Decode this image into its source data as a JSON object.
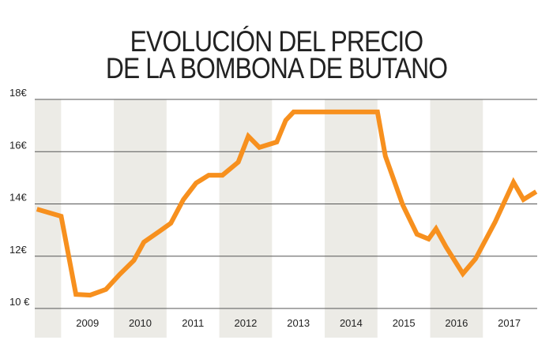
{
  "chart_data": {
    "type": "line",
    "title_lines": [
      "EVOLUCIÓN DEL PRECIO",
      "DE LA BOMBONA DE BUTANO"
    ],
    "xlabel": "",
    "ylabel": "",
    "xlim": [
      2008.5,
      2018.03
    ],
    "ylim": [
      10,
      18
    ],
    "y_ticks": [
      {
        "value": 18,
        "label": "18€"
      },
      {
        "value": 16,
        "label": "16€"
      },
      {
        "value": 14,
        "label": "14€"
      },
      {
        "value": 12,
        "label": "12€"
      },
      {
        "value": 10,
        "label": "10 €"
      }
    ],
    "x_tick_labels": [
      "2009",
      "2010",
      "2011",
      "2012",
      "2013",
      "2014",
      "2015",
      "2016",
      "2017"
    ],
    "grid": "horizontal",
    "alternating_year_bands": true,
    "colors": {
      "line": "#f7901e",
      "band": "#ecebe6",
      "grid": "#555555"
    },
    "series": [
      {
        "x": [
          2008.54,
          2009.0,
          2009.28,
          2009.55,
          2009.85,
          2010.11,
          2010.38,
          2010.57,
          2010.87,
          2011.08,
          2011.32,
          2011.56,
          2011.8,
          2012.06,
          2012.36,
          2012.55,
          2012.76,
          2013.09,
          2013.26,
          2013.41,
          2015.0,
          2015.15,
          2015.48,
          2015.75,
          2015.97,
          2016.11,
          2016.3,
          2016.62,
          2016.86,
          2017.23,
          2017.58,
          2017.77,
          2018.01
        ],
        "y": [
          13.8,
          13.53,
          10.54,
          10.51,
          10.73,
          11.3,
          11.84,
          12.54,
          12.96,
          13.26,
          14.17,
          14.8,
          15.1,
          15.1,
          15.6,
          16.59,
          16.16,
          16.37,
          17.2,
          17.52,
          17.52,
          15.83,
          13.96,
          12.84,
          12.66,
          13.05,
          12.36,
          11.33,
          11.9,
          13.3,
          14.83,
          14.17,
          14.47
        ]
      }
    ]
  }
}
